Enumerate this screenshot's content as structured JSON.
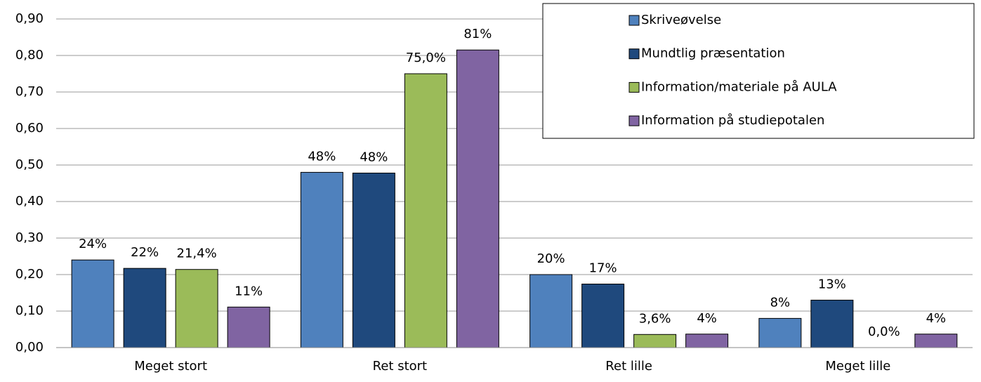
{
  "chart_data": {
    "type": "bar",
    "categories": [
      "Meget stort",
      "Ret stort",
      "Ret lille",
      "Meget lille"
    ],
    "series": [
      {
        "name": "Skriveøvelse",
        "color": "#4f81bd",
        "values": [
          0.24,
          0.48,
          0.2,
          0.08
        ],
        "value_labels": [
          "24%",
          "48%",
          "20%",
          "8%"
        ]
      },
      {
        "name": "Mundtlig præsentation",
        "color": "#1f497d",
        "values": [
          0.217,
          0.478,
          0.174,
          0.13
        ],
        "value_labels": [
          "22%",
          "48%",
          "17%",
          "13%"
        ]
      },
      {
        "name": "Information/materiale på AULA",
        "color": "#9bbb59",
        "values": [
          0.214,
          0.75,
          0.036,
          0.0
        ],
        "value_labels": [
          "21,4%",
          "75,0%",
          "3,6%",
          "0,0%"
        ]
      },
      {
        "name": "Information på studiepotalen",
        "color": "#8064a2",
        "values": [
          0.111,
          0.815,
          0.037,
          0.037
        ],
        "value_labels": [
          "11%",
          "81%",
          "4%",
          "4%"
        ]
      }
    ],
    "ylim": [
      0,
      0.9
    ],
    "yticks": [
      {
        "value": 0,
        "label": "0,00"
      },
      {
        "value": 0.1,
        "label": "0,10"
      },
      {
        "value": 0.2,
        "label": "0,20"
      },
      {
        "value": 0.3,
        "label": "0,30"
      },
      {
        "value": 0.4,
        "label": "0,40"
      },
      {
        "value": 0.5,
        "label": "0,50"
      },
      {
        "value": 0.6,
        "label": "0,60"
      },
      {
        "value": 0.7,
        "label": "0,70"
      },
      {
        "value": 0.8,
        "label": "0,80"
      },
      {
        "value": 0.9,
        "label": "0,90"
      }
    ],
    "grid": true,
    "legend": "top-right"
  }
}
